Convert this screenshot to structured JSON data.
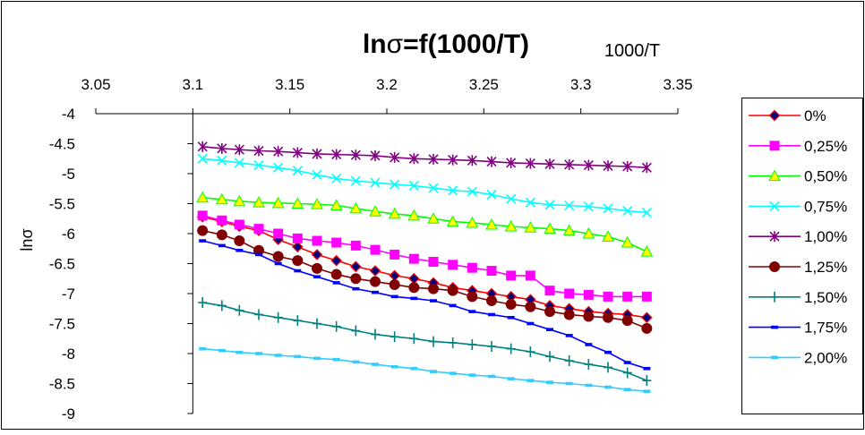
{
  "chart_data": {
    "type": "line",
    "title_prefix": "ln",
    "title_sigma": "σ",
    "title_suffix": "=f(1000/T)",
    "xlabel": "1000/T",
    "ylabel": "lnσ",
    "x_axis_position": "top",
    "xlim": [
      3.05,
      3.35
    ],
    "ylim": [
      -9,
      -4
    ],
    "xticks": [
      "3.05",
      "3.1",
      "3.15",
      "3.2",
      "3.25",
      "3.3",
      "3.35"
    ],
    "yticks": [
      "-4",
      "-4.5",
      "-5",
      "-5.5",
      "-6",
      "-6.5",
      "-7",
      "-7.5",
      "-8",
      "-8.5",
      "-9"
    ],
    "grid": false,
    "legend_position": "right",
    "x": [
      3.105,
      3.115,
      3.124,
      3.134,
      3.144,
      3.154,
      3.164,
      3.174,
      3.184,
      3.194,
      3.204,
      3.214,
      3.224,
      3.234,
      3.244,
      3.254,
      3.264,
      3.274,
      3.284,
      3.294,
      3.304,
      3.314,
      3.324,
      3.334
    ],
    "series": [
      {
        "name": "0%",
        "color": "#FF0000",
        "marker_color": "#000080",
        "marker": "diamond",
        "values": [
          -5.72,
          -5.8,
          -5.88,
          -5.95,
          -6.1,
          -6.22,
          -6.35,
          -6.45,
          -6.55,
          -6.62,
          -6.7,
          -6.75,
          -6.82,
          -6.9,
          -6.95,
          -7.0,
          -7.05,
          -7.1,
          -7.2,
          -7.25,
          -7.3,
          -7.33,
          -7.35,
          -7.4
        ]
      },
      {
        "name": "0,25%",
        "color": "#FF00FF",
        "marker_color": "#FF00FF",
        "marker": "square",
        "values": [
          -5.7,
          -5.78,
          -5.85,
          -5.92,
          -6.0,
          -6.08,
          -6.12,
          -6.15,
          -6.2,
          -6.27,
          -6.35,
          -6.42,
          -6.47,
          -6.52,
          -6.57,
          -6.62,
          -6.7,
          -6.7,
          -6.95,
          -7.0,
          -7.02,
          -7.05,
          -7.05,
          -7.05
        ]
      },
      {
        "name": "0,50%",
        "color": "#00FF00",
        "marker_color": "#FFFF00",
        "marker": "triangle",
        "values": [
          -5.4,
          -5.43,
          -5.46,
          -5.48,
          -5.49,
          -5.5,
          -5.51,
          -5.53,
          -5.58,
          -5.63,
          -5.67,
          -5.7,
          -5.75,
          -5.8,
          -5.82,
          -5.85,
          -5.88,
          -5.9,
          -5.92,
          -5.95,
          -6.0,
          -6.05,
          -6.15,
          -6.3
        ]
      },
      {
        "name": "0,75%",
        "color": "#00FFFF",
        "marker_color": "#00FFFF",
        "marker": "x",
        "values": [
          -4.75,
          -4.78,
          -4.82,
          -4.86,
          -4.9,
          -4.95,
          -5.02,
          -5.08,
          -5.12,
          -5.15,
          -5.18,
          -5.2,
          -5.24,
          -5.28,
          -5.3,
          -5.35,
          -5.42,
          -5.48,
          -5.52,
          -5.53,
          -5.55,
          -5.58,
          -5.62,
          -5.65
        ]
      },
      {
        "name": "1,00%",
        "color": "#800080",
        "marker_color": "#800080",
        "marker": "star",
        "values": [
          -4.55,
          -4.58,
          -4.6,
          -4.62,
          -4.63,
          -4.65,
          -4.67,
          -4.68,
          -4.69,
          -4.7,
          -4.73,
          -4.75,
          -4.76,
          -4.77,
          -4.78,
          -4.8,
          -4.82,
          -4.83,
          -4.84,
          -4.85,
          -4.86,
          -4.87,
          -4.88,
          -4.9
        ]
      },
      {
        "name": "1,25%",
        "color": "#800000",
        "marker_color": "#800000",
        "marker": "circle",
        "values": [
          -5.95,
          -6.02,
          -6.12,
          -6.28,
          -6.38,
          -6.45,
          -6.58,
          -6.68,
          -6.75,
          -6.8,
          -6.85,
          -6.9,
          -6.92,
          -6.95,
          -7.05,
          -7.12,
          -7.18,
          -7.22,
          -7.3,
          -7.35,
          -7.38,
          -7.4,
          -7.45,
          -7.58
        ]
      },
      {
        "name": "1,50%",
        "color": "#008080",
        "marker_color": "#008080",
        "marker": "plus",
        "values": [
          -7.15,
          -7.2,
          -7.28,
          -7.35,
          -7.4,
          -7.45,
          -7.5,
          -7.55,
          -7.62,
          -7.68,
          -7.72,
          -7.75,
          -7.8,
          -7.82,
          -7.85,
          -7.88,
          -7.92,
          -7.97,
          -8.05,
          -8.12,
          -8.18,
          -8.23,
          -8.32,
          -8.45
        ]
      },
      {
        "name": "1,75%",
        "color": "#0000FF",
        "marker_color": "#0000FF",
        "marker": "dash",
        "values": [
          -6.12,
          -6.2,
          -6.28,
          -6.35,
          -6.5,
          -6.62,
          -6.72,
          -6.82,
          -6.92,
          -6.98,
          -7.05,
          -7.08,
          -7.12,
          -7.2,
          -7.3,
          -7.35,
          -7.4,
          -7.5,
          -7.6,
          -7.7,
          -7.85,
          -7.98,
          -8.15,
          -8.25
        ]
      },
      {
        "name": "2,00%",
        "color": "#33CCFF",
        "marker_color": "#33CCFF",
        "marker": "dash",
        "values": [
          -7.92,
          -7.95,
          -7.98,
          -8.0,
          -8.03,
          -8.05,
          -8.08,
          -8.1,
          -8.14,
          -8.18,
          -8.22,
          -8.25,
          -8.3,
          -8.33,
          -8.36,
          -8.38,
          -8.42,
          -8.45,
          -8.48,
          -8.5,
          -8.53,
          -8.56,
          -8.6,
          -8.63
        ]
      }
    ]
  }
}
